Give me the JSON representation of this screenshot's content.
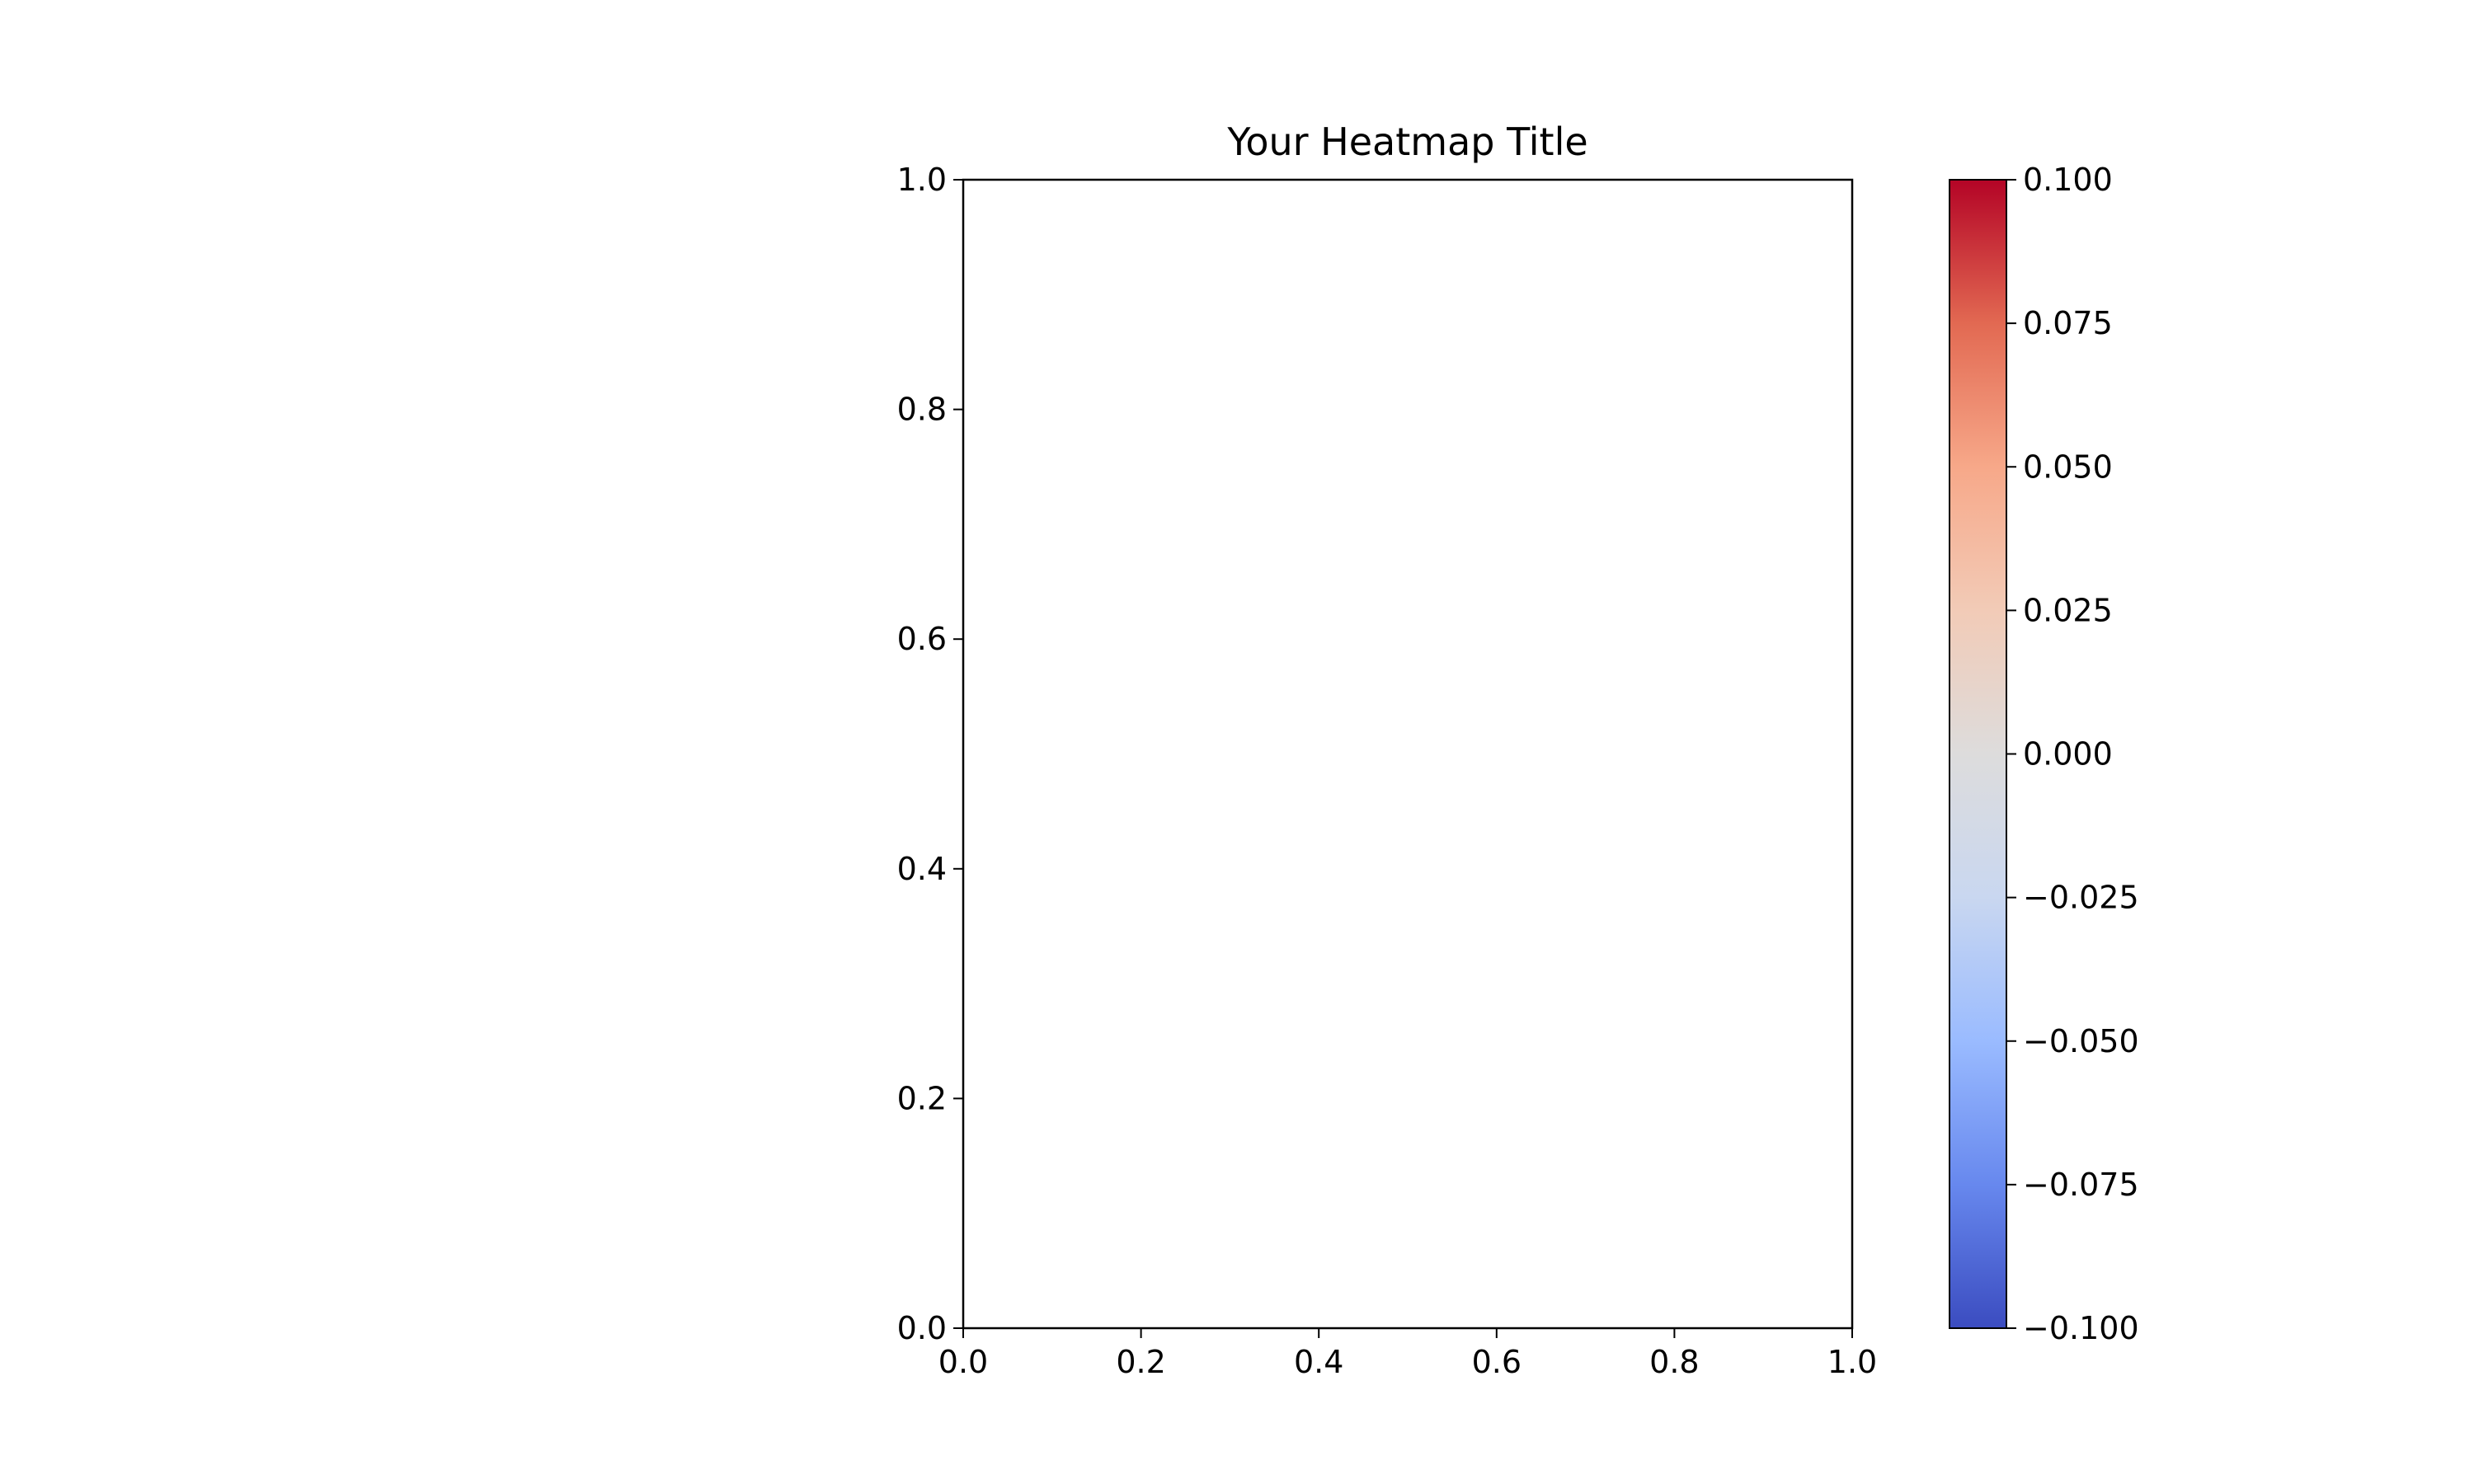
{
  "chart_data": {
    "type": "heatmap",
    "title": "Your Heatmap Title",
    "xlabel": "",
    "ylabel": "",
    "xlim": [
      0.0,
      1.0
    ],
    "ylim": [
      0.0,
      1.0
    ],
    "x_ticks": [
      "0.0",
      "0.2",
      "0.4",
      "0.6",
      "0.8",
      "1.0"
    ],
    "y_ticks": [
      "0.0",
      "0.2",
      "0.4",
      "0.6",
      "0.8",
      "1.0"
    ],
    "values": [],
    "grid": false,
    "colorbar": {
      "colormap": "coolwarm",
      "range": [
        -0.1,
        0.1
      ],
      "ticks": [
        "0.100",
        "0.075",
        "0.050",
        "0.025",
        "0.000",
        "−0.025",
        "−0.050",
        "−0.075",
        "−0.100"
      ],
      "colors": [
        "#3b4cc0",
        "#6788ee",
        "#9abbff",
        "#c9d7f0",
        "#dddcdc",
        "#f2cbb7",
        "#f7a889",
        "#e26952",
        "#b40426"
      ]
    }
  }
}
